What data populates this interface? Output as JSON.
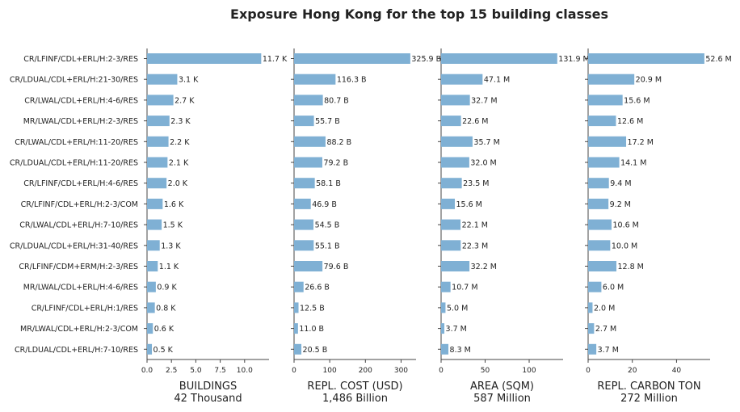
{
  "chart_data": {
    "type": "bar",
    "orientation": "horizontal",
    "title": "Exposure Hong Kong for the top 15 building classes",
    "categories": [
      "CR/LFINF/CDL+ERL/H:2-3/RES",
      "CR/LDUAL/CDL+ERL/H:21-30/RES",
      "CR/LWAL/CDL+ERL/H:4-6/RES",
      "MR/LWAL/CDL+ERL/H:2-3/RES",
      "CR/LWAL/CDL+ERL/H:11-20/RES",
      "CR/LDUAL/CDL+ERL/H:11-20/RES",
      "CR/LFINF/CDL+ERL/H:4-6/RES",
      "CR/LFINF/CDL+ERL/H:2-3/COM",
      "CR/LWAL/CDL+ERL/H:7-10/RES",
      "CR/LDUAL/CDL+ERL/H:31-40/RES",
      "CR/LFINF/CDM+ERM/H:2-3/RES",
      "MR/LWAL/CDL+ERL/H:4-6/RES",
      "CR/LFINF/CDL+ERL/H:1/RES",
      "MR/LWAL/CDL+ERL/H:2-3/COM",
      "CR/LDUAL/CDL+ERL/H:7-10/RES"
    ],
    "panels": [
      {
        "xlabel": "BUILDINGS",
        "xlabel_sub": "42 Thousand",
        "xlim": [
          0,
          12.5
        ],
        "ticks": [
          0,
          2.5,
          5,
          7.5,
          10
        ],
        "tick_labels": [
          "0.0",
          "2.5",
          "5.0",
          "7.5",
          "10.0"
        ],
        "values": [
          11.7,
          3.1,
          2.7,
          2.3,
          2.2,
          2.1,
          2.0,
          1.6,
          1.5,
          1.3,
          1.1,
          0.9,
          0.8,
          0.6,
          0.5
        ],
        "value_labels": [
          "11.7 K",
          "3.1 K",
          "2.7 K",
          "2.3 K",
          "2.2 K",
          "2.1 K",
          "2.0 K",
          "1.6 K",
          "1.5 K",
          "1.3 K",
          "1.1 K",
          "0.9 K",
          "0.8 K",
          "0.6 K",
          "0.5 K"
        ]
      },
      {
        "xlabel": "REPL. COST (USD)",
        "xlabel_sub": "1,486 Billion",
        "xlim": [
          0,
          342
        ],
        "ticks": [
          0,
          100,
          200,
          300
        ],
        "tick_labels": [
          "0",
          "100",
          "200",
          "300"
        ],
        "values": [
          325.9,
          116.3,
          80.7,
          55.7,
          88.2,
          79.2,
          58.1,
          46.9,
          54.5,
          55.1,
          79.6,
          26.6,
          12.5,
          11.0,
          20.5
        ],
        "value_labels": [
          "325.9 B",
          "116.3 B",
          "80.7 B",
          "55.7 B",
          "88.2 B",
          "79.2 B",
          "58.1 B",
          "46.9 B",
          "54.5 B",
          "55.1 B",
          "79.6 B",
          "26.6 B",
          "12.5 B",
          "11.0 B",
          "20.5 B"
        ]
      },
      {
        "xlabel": "AREA (SQM)",
        "xlabel_sub": "587 Million",
        "xlim": [
          0,
          138.5
        ],
        "ticks": [
          0,
          50,
          100
        ],
        "tick_labels": [
          "0",
          "50",
          "100"
        ],
        "values": [
          131.9,
          47.1,
          32.7,
          22.6,
          35.7,
          32.0,
          23.5,
          15.6,
          22.1,
          22.3,
          32.2,
          10.7,
          5.0,
          3.7,
          8.3
        ],
        "value_labels": [
          "131.9 M",
          "47.1 M",
          "32.7 M",
          "22.6 M",
          "35.7 M",
          "32.0 M",
          "23.5 M",
          "15.6 M",
          "22.1 M",
          "22.3 M",
          "32.2 M",
          "10.7 M",
          "5.0 M",
          "3.7 M",
          "8.3 M"
        ]
      },
      {
        "xlabel": "REPL. CARBON TON",
        "xlabel_sub": "272 Million",
        "xlim": [
          0,
          55.2
        ],
        "ticks": [
          0,
          20,
          40
        ],
        "tick_labels": [
          "0",
          "20",
          "40"
        ],
        "values": [
          52.6,
          20.9,
          15.6,
          12.6,
          17.2,
          14.1,
          9.4,
          9.2,
          10.6,
          10.0,
          12.8,
          6.0,
          2.0,
          2.7,
          3.7
        ],
        "value_labels": [
          "52.6 M",
          "20.9 M",
          "15.6 M",
          "12.6 M",
          "17.2 M",
          "14.1 M",
          "9.4 M",
          "9.2 M",
          "10.6 M",
          "10.0 M",
          "12.8 M",
          "6.0 M",
          "2.0 M",
          "2.7 M",
          "3.7 M"
        ]
      }
    ],
    "colors": {
      "bar": "#7fb0d4",
      "axis": "#444444",
      "text": "#222222"
    },
    "grid": false,
    "legend": "none"
  }
}
